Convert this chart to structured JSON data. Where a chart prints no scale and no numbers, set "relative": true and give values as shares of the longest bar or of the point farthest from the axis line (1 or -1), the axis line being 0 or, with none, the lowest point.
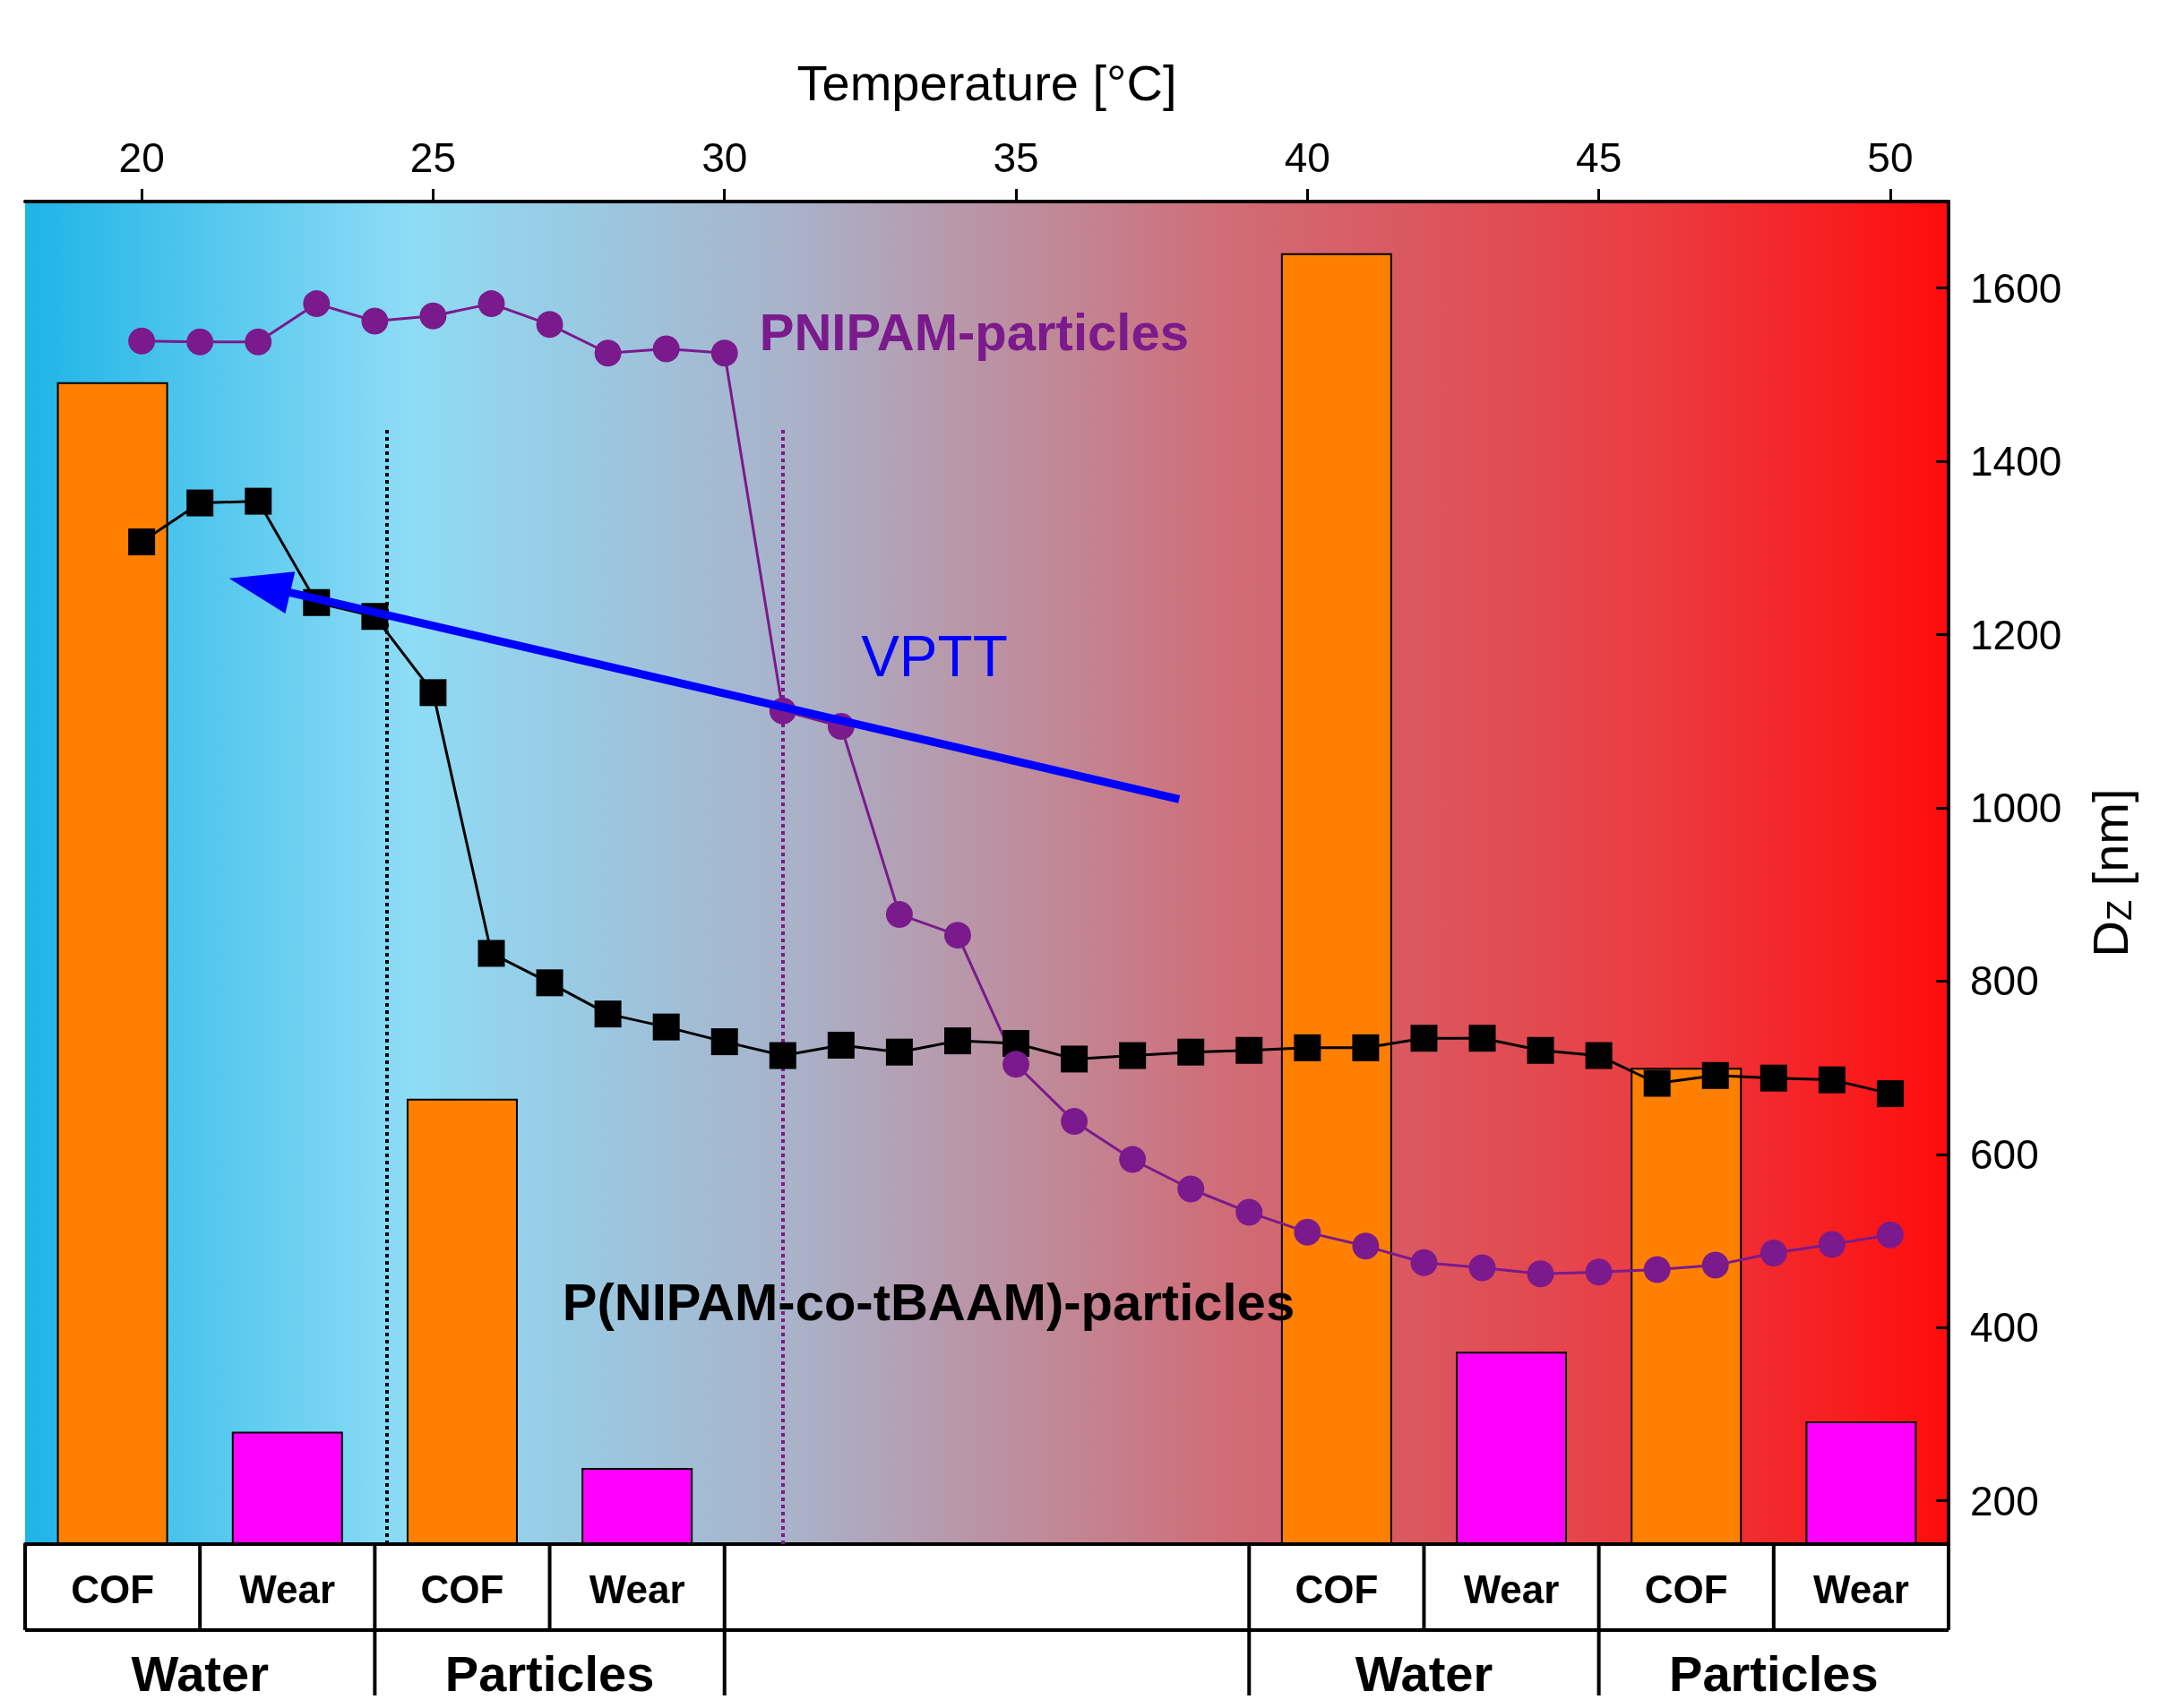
{
  "chart_data": [
    {
      "type": "bar",
      "categories": [
        "COF",
        "Wear",
        "COF",
        "Wear",
        null,
        null,
        null,
        "COF",
        "Wear",
        "COF",
        "Wear"
      ],
      "relative": true,
      "series": [
        {
          "colors": [
            "#ff8000",
            "#ff00ff",
            "#ff8000",
            "#ff00ff",
            null,
            null,
            null,
            "#ff8000",
            "#ff00ff",
            "#ff8000",
            "#ff00ff"
          ],
          "values": [
            0.9,
            0.087,
            0.345,
            0.059,
            null,
            null,
            null,
            1,
            0.149,
            0.369,
            0.095
          ]
        }
      ],
      "annotations": [
        "Water",
        "Particles",
        "Water",
        "Particles"
      ],
      "legend": false
    },
    {
      "type": "line",
      "xlabel": "Temperature [°C]",
      "y2label": "D$_{Z}$ [nm]",
      "xlim": [
        18,
        51
      ],
      "xticks": [
        20,
        25,
        30,
        35,
        40,
        45,
        50
      ],
      "y2lim": [
        150,
        1700
      ],
      "y2ticks": [
        200,
        400,
        600,
        800,
        1000,
        1200,
        1400,
        1600
      ],
      "series": [
        {
          "name": "P(NIPAM-co-tBAAM)-particles",
          "color": "#000000",
          "marker": "square",
          "axis": "y2",
          "x": [
            20,
            21,
            22,
            23,
            24,
            25,
            26,
            27,
            28,
            29,
            30,
            31,
            32,
            33,
            34,
            35,
            36,
            37,
            38,
            39,
            40,
            41,
            42,
            43,
            44,
            45,
            46,
            47,
            48,
            49,
            50
          ],
          "values": [
            1307,
            1352,
            1354,
            1237,
            1221,
            1133,
            832,
            798,
            762,
            747,
            730,
            714,
            726,
            718,
            731,
            728,
            710,
            714,
            718,
            720,
            723,
            723,
            734,
            734,
            720,
            714,
            682,
            691,
            688,
            686,
            670
          ]
        },
        {
          "name": "PNIPAM-particles",
          "color": "#7a1a8c",
          "marker": "circle",
          "axis": "y2",
          "x": [
            20,
            21,
            22,
            23,
            24,
            25,
            26,
            27,
            28,
            29,
            30,
            31,
            32,
            33,
            34,
            35,
            36,
            37,
            38,
            39,
            40,
            41,
            42,
            43,
            44,
            45,
            46,
            47,
            48,
            49,
            50
          ],
          "values": [
            1539,
            1538,
            1538,
            1582,
            1562,
            1568,
            1582,
            1558,
            1525,
            1530,
            1525,
            1112,
            1094,
            877,
            853,
            704,
            638,
            594,
            560,
            533,
            510,
            494,
            475,
            469,
            462,
            464,
            467,
            472,
            486,
            496,
            507
          ]
        }
      ],
      "ref_lines": [
        {
          "axis": "x",
          "value": 24.2,
          "color": "#000000",
          "line_style": "dotted"
        },
        {
          "axis": "x",
          "value": 31,
          "color": "#7a1a8c",
          "line_style": "dotted"
        }
      ],
      "annotations": [
        "VPTT"
      ],
      "legend": false,
      "grid": false
    }
  ]
}
